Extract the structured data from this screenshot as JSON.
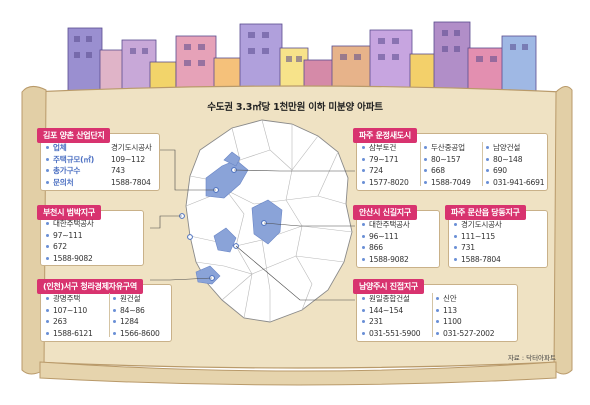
{
  "title": "수도권 3.3㎡당 1천만원 이하 미분양 아파트",
  "source": "자료 : 닥터아파트",
  "colors": {
    "header_bg": "#d8336f",
    "highlight_region": "#8aa3d8",
    "map_fill": "#ffffff",
    "scroll": "#efe2c3",
    "label_blue": "#4b6fc2"
  },
  "boxes": {
    "gimpo": {
      "title": "김포 양촌 산업단지",
      "rows": [
        {
          "label": "업체",
          "value": "경기도시공사"
        },
        {
          "label": "주택규모(㎡)",
          "value": "109~112"
        },
        {
          "label": "총가구수",
          "value": "743"
        },
        {
          "label": "문의처",
          "value": "1588-7804"
        }
      ]
    },
    "bucheon": {
      "title": "부천시 범박지구",
      "rows": [
        "대한주택공사",
        "97~111",
        "672",
        "1588-9082"
      ]
    },
    "incheon": {
      "title": "(인천)서구 청라경제자유구역",
      "col1": [
        "광명주택",
        "107~110",
        "263",
        "1588-6121"
      ],
      "col2": [
        "원건설",
        "84~86",
        "1284",
        "1566-8600"
      ]
    },
    "paju_unjeong": {
      "title": "파주 운정새도시",
      "col1": [
        "삼부토건",
        "79~171",
        "724",
        "1577-8020"
      ],
      "col2": [
        "두산중공업",
        "80~157",
        "668",
        "1588-7049"
      ],
      "col3": [
        "남양건설",
        "80~148",
        "690",
        "031-941-6691"
      ]
    },
    "ansan": {
      "title": "안산시 신길지구",
      "rows": [
        "대한주택공사",
        "96~111",
        "866",
        "1588-9082"
      ]
    },
    "paju_munsan": {
      "title": "파주 문산읍 당동지구",
      "rows": [
        "경기도시공사",
        "111~115",
        "731",
        "1588-7804"
      ]
    },
    "namyangju": {
      "title": "남양주시 진접지구",
      "col1": [
        "원일종합건설",
        "144~154",
        "231",
        "031-551-5900"
      ],
      "col2": [
        "신안",
        "113",
        "1100",
        "031-527-2002"
      ]
    }
  }
}
